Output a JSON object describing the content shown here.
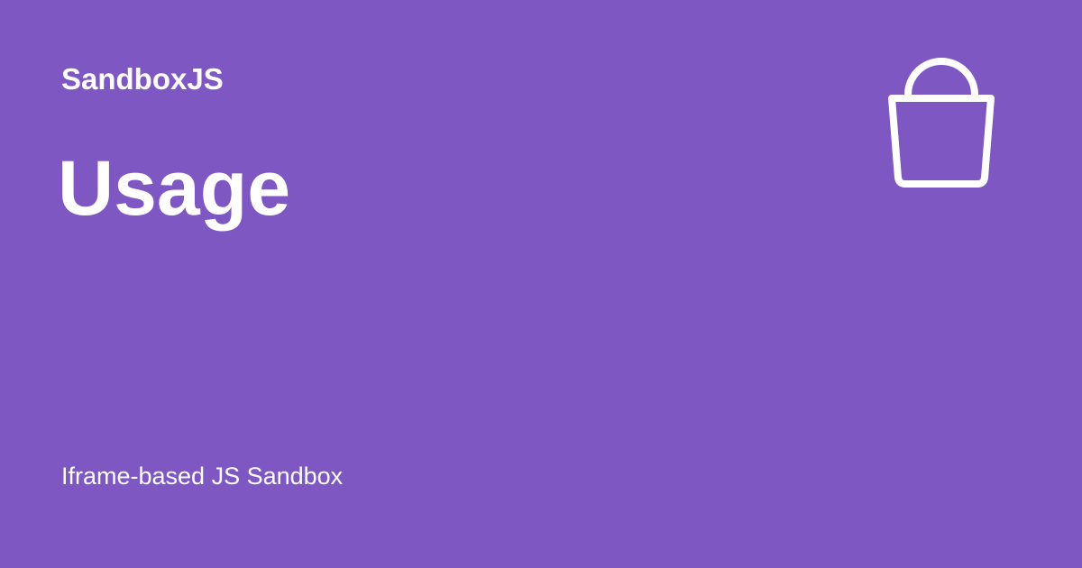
{
  "site": {
    "name": "SandboxJS"
  },
  "page": {
    "title": "Usage",
    "description": "Iframe-based JS Sandbox"
  },
  "icon": {
    "name": "bucket-icon"
  },
  "colors": {
    "background": "#7e57c2",
    "foreground": "#ffffff"
  }
}
